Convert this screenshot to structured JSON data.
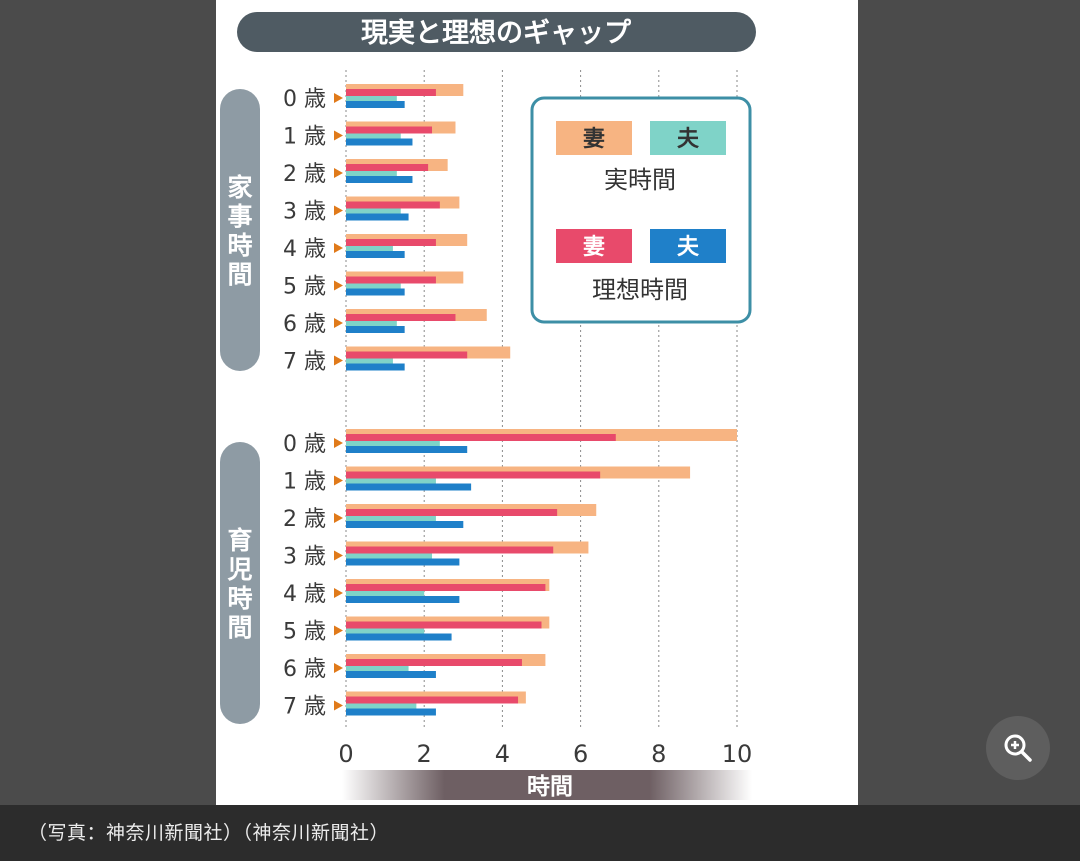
{
  "caption": "（写真：神奈川新聞社）（神奈川新聞社）",
  "zoom_button": {
    "icon": "zoom-in-icon"
  },
  "colors": {
    "wife_actual": "#f7b482",
    "husband_actual": "#7fd3c8",
    "wife_ideal": "#e84a6b",
    "husband_ideal": "#1f80c9",
    "marker": "#e07a1a",
    "group_pill": "#8e9ba4",
    "title_bg": "#4f5b63",
    "legend_border": "#3d8fa6"
  },
  "chart_data": {
    "type": "bar",
    "orientation": "horizontal",
    "title": "現実と理想のギャップ",
    "xlabel": "時間",
    "xlim": [
      0,
      10
    ],
    "xticks": [
      0,
      2,
      4,
      6,
      8,
      10
    ],
    "grid": "vertical dashed",
    "legend": {
      "placement": "top-right",
      "actual_label": "実時間",
      "ideal_label": "理想時間",
      "wife": "妻",
      "husband": "夫"
    },
    "categories": [
      "0 歳",
      "1 歳",
      "2 歳",
      "3 歳",
      "4 歳",
      "5 歳",
      "6 歳",
      "7 歳"
    ],
    "groups": [
      {
        "name": "家事時間",
        "series": [
          {
            "name": "妻 実時間",
            "values": [
              3.0,
              2.8,
              2.6,
              2.9,
              3.1,
              3.0,
              3.6,
              4.2
            ]
          },
          {
            "name": "妻 理想時間",
            "values": [
              2.3,
              2.2,
              2.1,
              2.4,
              2.3,
              2.3,
              2.8,
              3.1
            ]
          },
          {
            "name": "夫 実時間",
            "values": [
              1.3,
              1.4,
              1.3,
              1.4,
              1.2,
              1.4,
              1.3,
              1.2
            ]
          },
          {
            "name": "夫 理想時間",
            "values": [
              1.5,
              1.7,
              1.7,
              1.6,
              1.5,
              1.5,
              1.5,
              1.5
            ]
          }
        ]
      },
      {
        "name": "育児時間",
        "series": [
          {
            "name": "妻 実時間",
            "values": [
              10.0,
              8.8,
              6.4,
              6.2,
              5.2,
              5.2,
              5.1,
              4.6
            ]
          },
          {
            "name": "妻 理想時間",
            "values": [
              6.9,
              6.5,
              5.4,
              5.3,
              5.1,
              5.0,
              4.5,
              4.4
            ]
          },
          {
            "name": "夫 実時間",
            "values": [
              2.4,
              2.3,
              2.3,
              2.2,
              2.0,
              2.0,
              1.6,
              1.8
            ]
          },
          {
            "name": "夫 理想時間",
            "values": [
              3.1,
              3.2,
              3.0,
              2.9,
              2.9,
              2.7,
              2.3,
              2.3
            ]
          }
        ]
      }
    ]
  }
}
